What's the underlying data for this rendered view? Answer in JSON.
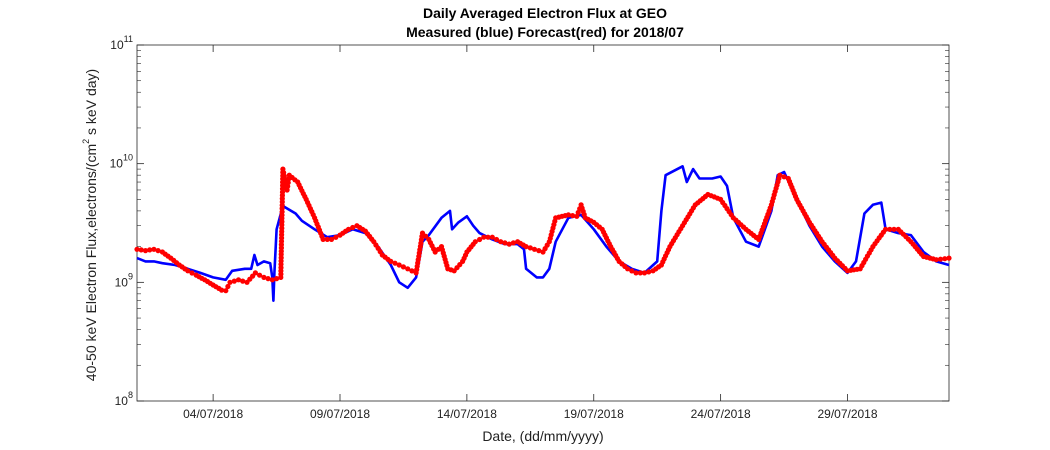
{
  "chart_data": {
    "type": "line",
    "title": "Daily Averaged Electron Flux at GEO",
    "subtitle": "Measured (blue) Forecast(red) for 2018/07",
    "xlabel": "Date, (dd/mm/yyyy)",
    "ylabel_main": "40-50 keV Electron Flux,electrons/(cm",
    "ylabel_exp": "2",
    "ylabel_tail": " s keV day)",
    "y_scale": "log",
    "ylim": [
      100000000.0,
      100000000000.0
    ],
    "xlim": [
      "2018-07-01",
      "2018-08-02"
    ],
    "x_ticks": [
      {
        "date": "2018-07-04",
        "label": "04/07/2018"
      },
      {
        "date": "2018-07-09",
        "label": "09/07/2018"
      },
      {
        "date": "2018-07-14",
        "label": "14/07/2018"
      },
      {
        "date": "2018-07-19",
        "label": "19/07/2018"
      },
      {
        "date": "2018-07-24",
        "label": "24/07/2018"
      },
      {
        "date": "2018-07-29",
        "label": "29/07/2018"
      }
    ],
    "y_ticks": [
      {
        "value": 100000000.0,
        "base": "10",
        "exp": "8"
      },
      {
        "value": 1000000000.0,
        "base": "10",
        "exp": "9"
      },
      {
        "value": 10000000000.0,
        "base": "10",
        "exp": "10"
      },
      {
        "value": 100000000000.0,
        "base": "10",
        "exp": "11"
      }
    ],
    "series": [
      {
        "color": "#0000ff",
        "style": "line",
        "points": [
          [
            "2018-07-01 00:00",
            1600000000.0
          ],
          [
            "2018-07-01 08:00",
            1500000000.0
          ],
          [
            "2018-07-01 16:00",
            1500000000.0
          ],
          [
            "2018-07-02 00:00",
            1450000000.0
          ],
          [
            "2018-07-02 12:00",
            1400000000.0
          ],
          [
            "2018-07-03 00:00",
            1300000000.0
          ],
          [
            "2018-07-03 12:00",
            1200000000.0
          ],
          [
            "2018-07-04 00:00",
            1100000000.0
          ],
          [
            "2018-07-04 12:00",
            1050000000.0
          ],
          [
            "2018-07-04 18:00",
            1250000000.0
          ],
          [
            "2018-07-05 06:00",
            1300000000.0
          ],
          [
            "2018-07-05 12:00",
            1300000000.0
          ],
          [
            "2018-07-05 15:00",
            1700000000.0
          ],
          [
            "2018-07-05 18:00",
            1400000000.0
          ],
          [
            "2018-07-06 00:00",
            1500000000.0
          ],
          [
            "2018-07-06 06:00",
            1450000000.0
          ],
          [
            "2018-07-06 08:00",
            1100000000.0
          ],
          [
            "2018-07-06 09:00",
            700000000.0
          ],
          [
            "2018-07-06 10:00",
            1200000000.0
          ],
          [
            "2018-07-06 12:00",
            2800000000.0
          ],
          [
            "2018-07-06 18:00",
            4400000000.0
          ],
          [
            "2018-07-07 06:00",
            3800000000.0
          ],
          [
            "2018-07-07 12:00",
            3300000000.0
          ],
          [
            "2018-07-08 00:00",
            2800000000.0
          ],
          [
            "2018-07-08 12:00",
            2400000000.0
          ],
          [
            "2018-07-09 00:00",
            2500000000.0
          ],
          [
            "2018-07-09 12:00",
            2800000000.0
          ],
          [
            "2018-07-10 00:00",
            2600000000.0
          ],
          [
            "2018-07-10 12:00",
            2000000000.0
          ],
          [
            "2018-07-11 00:00",
            1400000000.0
          ],
          [
            "2018-07-11 08:00",
            1000000000.0
          ],
          [
            "2018-07-11 16:00",
            900000000.0
          ],
          [
            "2018-07-12 00:00",
            1100000000.0
          ],
          [
            "2018-07-12 06:00",
            2200000000.0
          ],
          [
            "2018-07-12 12:00",
            2500000000.0
          ],
          [
            "2018-07-13 00:00",
            3500000000.0
          ],
          [
            "2018-07-13 08:00",
            4000000000.0
          ],
          [
            "2018-07-13 10:00",
            2800000000.0
          ],
          [
            "2018-07-13 16:00",
            3200000000.0
          ],
          [
            "2018-07-14 00:00",
            3600000000.0
          ],
          [
            "2018-07-14 06:00",
            3000000000.0
          ],
          [
            "2018-07-14 12:00",
            2600000000.0
          ],
          [
            "2018-07-15 00:00",
            2300000000.0
          ],
          [
            "2018-07-15 12:00",
            2100000000.0
          ],
          [
            "2018-07-16 00:00",
            2100000000.0
          ],
          [
            "2018-07-16 06:00",
            1900000000.0
          ],
          [
            "2018-07-16 08:00",
            1300000000.0
          ],
          [
            "2018-07-16 18:00",
            1100000000.0
          ],
          [
            "2018-07-17 00:00",
            1100000000.0
          ],
          [
            "2018-07-17 06:00",
            1300000000.0
          ],
          [
            "2018-07-17 12:00",
            2200000000.0
          ],
          [
            "2018-07-18 00:00",
            3500000000.0
          ],
          [
            "2018-07-18 12:00",
            3700000000.0
          ],
          [
            "2018-07-19 00:00",
            2800000000.0
          ],
          [
            "2018-07-19 12:00",
            2000000000.0
          ],
          [
            "2018-07-20 00:00",
            1500000000.0
          ],
          [
            "2018-07-20 12:00",
            1300000000.0
          ],
          [
            "2018-07-21 00:00",
            1200000000.0
          ],
          [
            "2018-07-21 12:00",
            1500000000.0
          ],
          [
            "2018-07-21 16:00",
            4000000000.0
          ],
          [
            "2018-07-21 20:00",
            8000000000.0
          ],
          [
            "2018-07-22 12:00",
            9500000000.0
          ],
          [
            "2018-07-22 16:00",
            7000000000.0
          ],
          [
            "2018-07-22 22:00",
            9000000000.0
          ],
          [
            "2018-07-23 04:00",
            7500000000.0
          ],
          [
            "2018-07-23 10:00",
            7500000000.0
          ],
          [
            "2018-07-23 16:00",
            7500000000.0
          ],
          [
            "2018-07-24 00:00",
            7800000000.0
          ],
          [
            "2018-07-24 06:00",
            6500000000.0
          ],
          [
            "2018-07-24 12:00",
            3500000000.0
          ],
          [
            "2018-07-25 00:00",
            2200000000.0
          ],
          [
            "2018-07-25 12:00",
            2000000000.0
          ],
          [
            "2018-07-26 00:00",
            4000000000.0
          ],
          [
            "2018-07-26 06:00",
            8000000000.0
          ],
          [
            "2018-07-26 12:00",
            8500000000.0
          ],
          [
            "2018-07-27 00:00",
            5000000000.0
          ],
          [
            "2018-07-27 12:00",
            3000000000.0
          ],
          [
            "2018-07-28 00:00",
            2000000000.0
          ],
          [
            "2018-07-28 12:00",
            1500000000.0
          ],
          [
            "2018-07-29 00:00",
            1200000000.0
          ],
          [
            "2018-07-29 08:00",
            1500000000.0
          ],
          [
            "2018-07-29 16:00",
            3800000000.0
          ],
          [
            "2018-07-30 00:00",
            4500000000.0
          ],
          [
            "2018-07-30 08:00",
            4700000000.0
          ],
          [
            "2018-07-30 12:00",
            2800000000.0
          ],
          [
            "2018-07-31 00:00",
            2600000000.0
          ],
          [
            "2018-07-31 12:00",
            2500000000.0
          ],
          [
            "2018-08-01 00:00",
            1800000000.0
          ],
          [
            "2018-08-01 12:00",
            1500000000.0
          ],
          [
            "2018-08-02 00:00",
            1400000000.0
          ]
        ]
      },
      {
        "color": "#ff0000",
        "style": "markers",
        "points": [
          [
            "2018-07-01 00:00",
            1900000000.0
          ],
          [
            "2018-07-01 08:00",
            1850000000.0
          ],
          [
            "2018-07-01 16:00",
            1900000000.0
          ],
          [
            "2018-07-02 00:00",
            1800000000.0
          ],
          [
            "2018-07-02 08:00",
            1600000000.0
          ],
          [
            "2018-07-02 16:00",
            1400000000.0
          ],
          [
            "2018-07-03 00:00",
            1250000000.0
          ],
          [
            "2018-07-03 08:00",
            1150000000.0
          ],
          [
            "2018-07-03 16:00",
            1050000000.0
          ],
          [
            "2018-07-04 00:00",
            950000000.0
          ],
          [
            "2018-07-04 08:00",
            860000000.0
          ],
          [
            "2018-07-04 12:00",
            850000000.0
          ],
          [
            "2018-07-04 16:00",
            1000000000.0
          ],
          [
            "2018-07-05 00:00",
            1050000000.0
          ],
          [
            "2018-07-05 08:00",
            1000000000.0
          ],
          [
            "2018-07-05 16:00",
            1200000000.0
          ],
          [
            "2018-07-06 00:00",
            1100000000.0
          ],
          [
            "2018-07-06 08:00",
            1050000000.0
          ],
          [
            "2018-07-06 16:00",
            1100000000.0
          ],
          [
            "2018-07-06 18:00",
            9000000000.0
          ],
          [
            "2018-07-06 22:00",
            6000000000.0
          ],
          [
            "2018-07-07 00:00",
            8000000000.0
          ],
          [
            "2018-07-07 08:00",
            7000000000.0
          ],
          [
            "2018-07-07 16:00",
            5000000000.0
          ],
          [
            "2018-07-08 00:00",
            3500000000.0
          ],
          [
            "2018-07-08 08:00",
            2300000000.0
          ],
          [
            "2018-07-08 16:00",
            2300000000.0
          ],
          [
            "2018-07-09 00:00",
            2500000000.0
          ],
          [
            "2018-07-09 08:00",
            2800000000.0
          ],
          [
            "2018-07-09 16:00",
            3000000000.0
          ],
          [
            "2018-07-10 00:00",
            2700000000.0
          ],
          [
            "2018-07-10 08:00",
            2200000000.0
          ],
          [
            "2018-07-10 16:00",
            1700000000.0
          ],
          [
            "2018-07-11 00:00",
            1500000000.0
          ],
          [
            "2018-07-11 08:00",
            1400000000.0
          ],
          [
            "2018-07-11 16:00",
            1300000000.0
          ],
          [
            "2018-07-12 00:00",
            1200000000.0
          ],
          [
            "2018-07-12 06:00",
            2600000000.0
          ],
          [
            "2018-07-12 12:00",
            2300000000.0
          ],
          [
            "2018-07-12 18:00",
            1800000000.0
          ],
          [
            "2018-07-13 00:00",
            2000000000.0
          ],
          [
            "2018-07-13 06:00",
            1300000000.0
          ],
          [
            "2018-07-13 12:00",
            1250000000.0
          ],
          [
            "2018-07-13 20:00",
            1500000000.0
          ],
          [
            "2018-07-14 00:00",
            1800000000.0
          ],
          [
            "2018-07-14 08:00",
            2200000000.0
          ],
          [
            "2018-07-14 16:00",
            2400000000.0
          ],
          [
            "2018-07-15 00:00",
            2400000000.0
          ],
          [
            "2018-07-15 08:00",
            2200000000.0
          ],
          [
            "2018-07-15 16:00",
            2100000000.0
          ],
          [
            "2018-07-16 00:00",
            2200000000.0
          ],
          [
            "2018-07-16 08:00",
            2000000000.0
          ],
          [
            "2018-07-16 16:00",
            1900000000.0
          ],
          [
            "2018-07-17 00:00",
            1800000000.0
          ],
          [
            "2018-07-17 06:00",
            2200000000.0
          ],
          [
            "2018-07-17 12:00",
            3500000000.0
          ],
          [
            "2018-07-18 00:00",
            3700000000.0
          ],
          [
            "2018-07-18 08:00",
            3600000000.0
          ],
          [
            "2018-07-18 12:00",
            4500000000.0
          ],
          [
            "2018-07-18 16:00",
            3500000000.0
          ],
          [
            "2018-07-19 00:00",
            3200000000.0
          ],
          [
            "2018-07-19 08:00",
            2800000000.0
          ],
          [
            "2018-07-19 16:00",
            2000000000.0
          ],
          [
            "2018-07-20 00:00",
            1500000000.0
          ],
          [
            "2018-07-20 08:00",
            1300000000.0
          ],
          [
            "2018-07-20 16:00",
            1200000000.0
          ],
          [
            "2018-07-21 00:00",
            1200000000.0
          ],
          [
            "2018-07-21 08:00",
            1250000000.0
          ],
          [
            "2018-07-21 16:00",
            1400000000.0
          ],
          [
            "2018-07-22 00:00",
            2000000000.0
          ],
          [
            "2018-07-22 12:00",
            3000000000.0
          ],
          [
            "2018-07-23 00:00",
            4500000000.0
          ],
          [
            "2018-07-23 12:00",
            5500000000.0
          ],
          [
            "2018-07-24 00:00",
            5000000000.0
          ],
          [
            "2018-07-24 12:00",
            3500000000.0
          ],
          [
            "2018-07-25 00:00",
            2800000000.0
          ],
          [
            "2018-07-25 12:00",
            2300000000.0
          ],
          [
            "2018-07-26 00:00",
            4500000000.0
          ],
          [
            "2018-07-26 08:00",
            8000000000.0
          ],
          [
            "2018-07-26 16:00",
            7500000000.0
          ],
          [
            "2018-07-27 00:00",
            5000000000.0
          ],
          [
            "2018-07-27 12:00",
            3200000000.0
          ],
          [
            "2018-07-28 00:00",
            2200000000.0
          ],
          [
            "2018-07-28 12:00",
            1600000000.0
          ],
          [
            "2018-07-29 00:00",
            1250000000.0
          ],
          [
            "2018-07-29 12:00",
            1300000000.0
          ],
          [
            "2018-07-30 00:00",
            2000000000.0
          ],
          [
            "2018-07-30 12:00",
            2800000000.0
          ],
          [
            "2018-07-31 00:00",
            2800000000.0
          ],
          [
            "2018-07-31 12:00",
            2200000000.0
          ],
          [
            "2018-08-01 00:00",
            1650000000.0
          ],
          [
            "2018-08-01 12:00",
            1550000000.0
          ],
          [
            "2018-08-02 00:00",
            1600000000.0
          ]
        ]
      }
    ]
  }
}
